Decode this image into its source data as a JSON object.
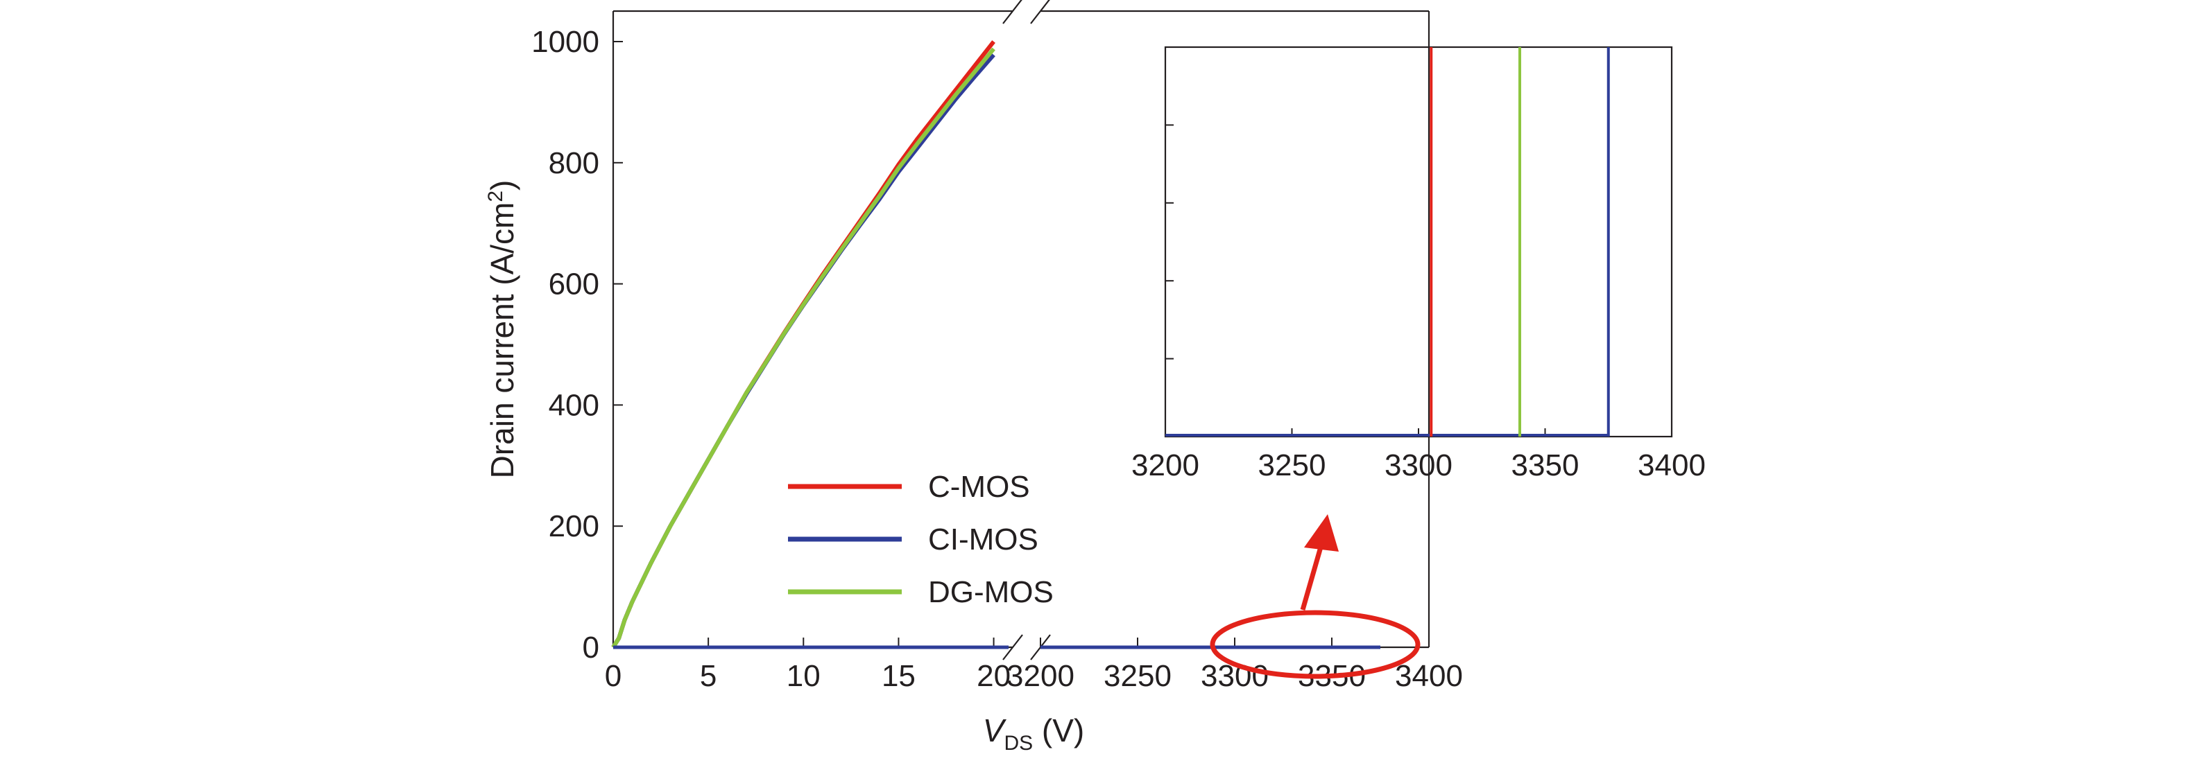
{
  "chart_data": {
    "type": "line",
    "x_axis": {
      "label_italic": "V",
      "label_sub": "DS",
      "label_unit": " (V)",
      "segments": [
        {
          "range": [
            0,
            21
          ],
          "ticks": [
            0,
            5,
            10,
            15,
            20
          ]
        },
        {
          "range": [
            3200,
            3400
          ],
          "ticks": [
            3200,
            3250,
            3300,
            3350,
            3400
          ]
        }
      ],
      "axis_break": true
    },
    "y_axis": {
      "label": "Drain current (A/cm",
      "label_sup": "2",
      "label_close": ")",
      "range": [
        0,
        1000
      ],
      "ticks": [
        0,
        200,
        400,
        600,
        800,
        1000
      ]
    },
    "series": [
      {
        "name": "C-MOS",
        "color": "#e2231a",
        "on_state": [
          [
            0,
            0
          ],
          [
            0.3,
            15
          ],
          [
            0.6,
            45
          ],
          [
            1,
            75
          ],
          [
            2,
            140
          ],
          [
            3,
            200
          ],
          [
            4,
            255
          ],
          [
            5,
            310
          ],
          [
            6,
            365
          ],
          [
            7,
            420
          ],
          [
            8,
            470
          ],
          [
            9,
            520
          ],
          [
            10,
            568
          ],
          [
            11,
            615
          ],
          [
            12,
            660
          ],
          [
            13,
            705
          ],
          [
            14,
            750
          ],
          [
            15,
            797
          ],
          [
            16,
            840
          ],
          [
            17,
            880
          ],
          [
            18,
            920
          ],
          [
            19,
            960
          ],
          [
            20,
            1000
          ]
        ],
        "off_state_voltage_range": [
          3200,
          3305
        ],
        "breakdown_voltage": 3305
      },
      {
        "name": "CI-MOS",
        "color": "#2e3d98",
        "on_state": [
          [
            0,
            0
          ],
          [
            0.3,
            15
          ],
          [
            0.6,
            45
          ],
          [
            1,
            75
          ],
          [
            2,
            140
          ],
          [
            3,
            200
          ],
          [
            4,
            255
          ],
          [
            5,
            310
          ],
          [
            6,
            365
          ],
          [
            7,
            418
          ],
          [
            8,
            468
          ],
          [
            9,
            518
          ],
          [
            10,
            565
          ],
          [
            11,
            610
          ],
          [
            12,
            655
          ],
          [
            13,
            698
          ],
          [
            14,
            740
          ],
          [
            15,
            785
          ],
          [
            16,
            825
          ],
          [
            17,
            865
          ],
          [
            18,
            905
          ],
          [
            19,
            942
          ],
          [
            20,
            978
          ]
        ],
        "off_state_voltage_range": [
          3200,
          3375
        ],
        "breakdown_voltage": 3375
      },
      {
        "name": "DG-MOS",
        "color": "#8dc63f",
        "on_state": [
          [
            0,
            0
          ],
          [
            0.3,
            15
          ],
          [
            0.6,
            45
          ],
          [
            1,
            75
          ],
          [
            2,
            140
          ],
          [
            3,
            200
          ],
          [
            4,
            255
          ],
          [
            5,
            310
          ],
          [
            6,
            365
          ],
          [
            7,
            420
          ],
          [
            8,
            469
          ],
          [
            9,
            519
          ],
          [
            10,
            566
          ],
          [
            11,
            612
          ],
          [
            12,
            657
          ],
          [
            13,
            701
          ],
          [
            14,
            745
          ],
          [
            15,
            791
          ],
          [
            16,
            832
          ],
          [
            17,
            872
          ],
          [
            18,
            912
          ],
          [
            19,
            950
          ],
          [
            20,
            988
          ]
        ],
        "off_state_voltage_range": [
          3200,
          3340
        ],
        "breakdown_voltage": 3340
      }
    ],
    "legend_position": "lower-center",
    "inset": {
      "x_range": [
        3200,
        3400
      ],
      "x_ticks": [
        3200,
        3250,
        3300,
        3350,
        3400
      ],
      "y_tick_count": 5,
      "y_tick_labels_shown": false,
      "magnifies": "region around 3300-3380 V near 0 A/cm2",
      "highlight_color": "#e2231a"
    },
    "grid": false
  }
}
